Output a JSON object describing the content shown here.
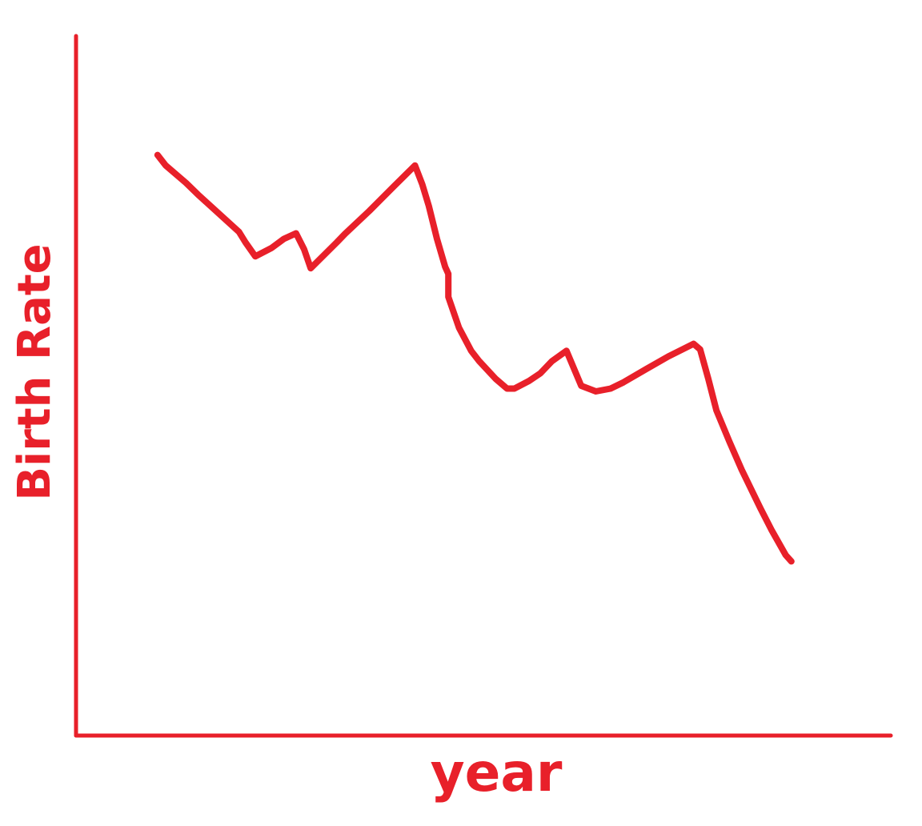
{
  "chart_data": {
    "type": "line",
    "title": "",
    "xlabel": "year",
    "ylabel": "Birth Rate",
    "grid": false,
    "legend": "none",
    "ticks_shown": false,
    "color": "#e8202a",
    "xlim": [
      0,
      100
    ],
    "ylim": [
      0,
      100
    ],
    "series": [
      {
        "points": [
          [
            10,
            83
          ],
          [
            11,
            81.5
          ],
          [
            13.5,
            79
          ],
          [
            15,
            77.3
          ],
          [
            20,
            72
          ],
          [
            20.8,
            70.5
          ],
          [
            22,
            68.5
          ],
          [
            24,
            69.7
          ],
          [
            25.5,
            71
          ],
          [
            27,
            71.8
          ],
          [
            28,
            69.5
          ],
          [
            28.8,
            66.8
          ],
          [
            32,
            70.5
          ],
          [
            33,
            71.7
          ],
          [
            36,
            75
          ],
          [
            39,
            78.5
          ],
          [
            41.6,
            81.5
          ],
          [
            42.5,
            78.8
          ],
          [
            43.3,
            75.7
          ],
          [
            44.3,
            71
          ],
          [
            45.3,
            67
          ],
          [
            45.7,
            66
          ],
          [
            45.7,
            62.7
          ],
          [
            47,
            58.3
          ],
          [
            48.5,
            55
          ],
          [
            49.5,
            53.5
          ],
          [
            51.5,
            51
          ],
          [
            52.9,
            49.6
          ],
          [
            53.8,
            49.6
          ],
          [
            55.6,
            50.7
          ],
          [
            57,
            51.8
          ],
          [
            58.4,
            53.5
          ],
          [
            60.2,
            55
          ],
          [
            62,
            50
          ],
          [
            63.8,
            49.2
          ],
          [
            65.6,
            49.6
          ],
          [
            67.2,
            50.5
          ],
          [
            70,
            52.4
          ],
          [
            72.7,
            54.2
          ],
          [
            75.8,
            56
          ],
          [
            76.6,
            55.2
          ],
          [
            77.6,
            51
          ],
          [
            78.6,
            46.5
          ],
          [
            80.2,
            42
          ],
          [
            81.7,
            38
          ],
          [
            84,
            32.5
          ],
          [
            85.4,
            29.3
          ],
          [
            87.1,
            25.8
          ],
          [
            87.8,
            24.9
          ]
        ]
      }
    ]
  }
}
